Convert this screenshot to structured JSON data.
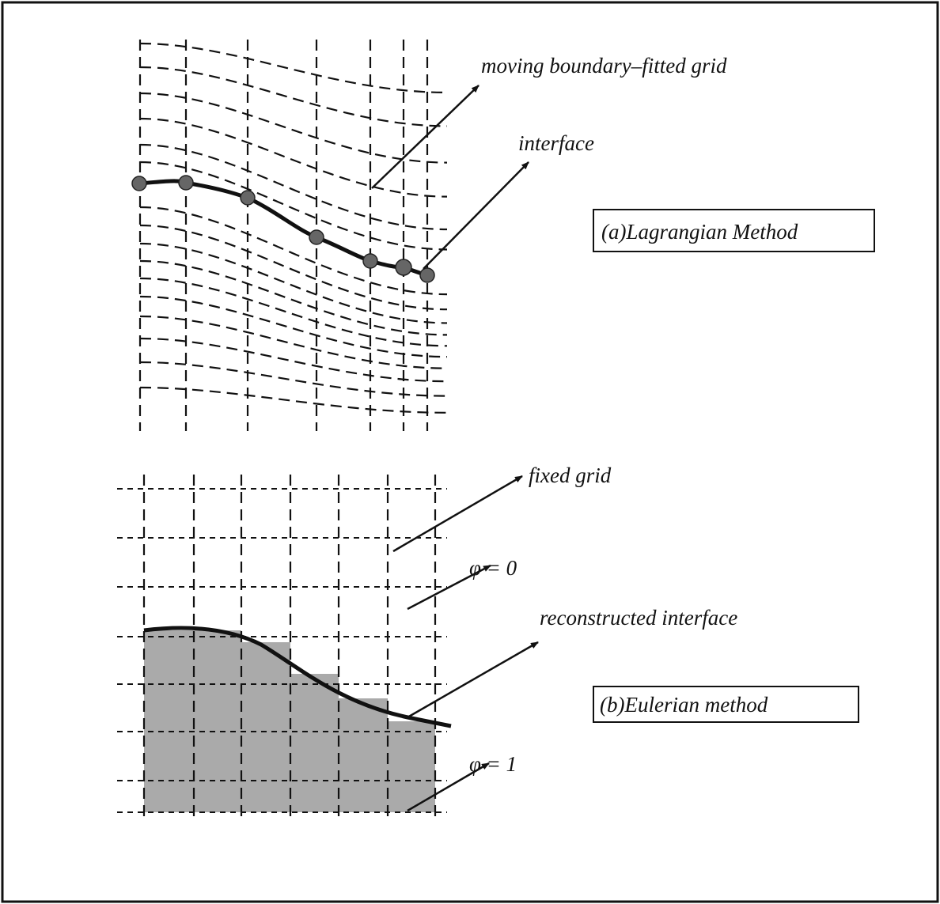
{
  "panel_a": {
    "grid_label": "moving boundary–fitted grid",
    "interface_label": "interface",
    "method": "(a)Lagrangian Method"
  },
  "panel_b": {
    "grid_label": "fixed grid",
    "phi_zero": "φ = 0",
    "interface_label": "reconstructed interface",
    "method": "(b)Eulerian method",
    "phi_one": "φ = 1"
  }
}
